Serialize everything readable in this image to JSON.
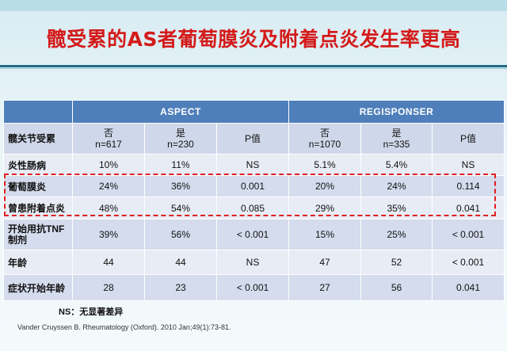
{
  "title": "髋受累的AS者葡萄膜炎及附着点炎发生率更高",
  "table": {
    "groups": [
      "ASPECT",
      "REGISPONSER"
    ],
    "subheader": {
      "label": "髋关节受累",
      "cols": [
        {
          "top": "否",
          "bottom": "n=617"
        },
        {
          "top": "是",
          "bottom": "n=230"
        },
        {
          "top": "P值",
          "bottom": ""
        },
        {
          "top": "否",
          "bottom": "n=1070"
        },
        {
          "top": "是",
          "bottom": "n=335"
        },
        {
          "top": "P值",
          "bottom": ""
        }
      ]
    },
    "rows": [
      {
        "label": "炎性肠病",
        "cells": [
          "10%",
          "11%",
          "NS",
          "5.1%",
          "5.4%",
          "NS"
        ]
      },
      {
        "label": "葡萄膜炎",
        "cells": [
          "24%",
          "36%",
          "0.001",
          "20%",
          "24%",
          "0.114"
        ]
      },
      {
        "label": "曾患附着点炎",
        "cells": [
          "48%",
          "54%",
          "0.085",
          "29%",
          "35%",
          "0.041"
        ]
      },
      {
        "label": "开始用抗TNF制剂",
        "cells": [
          "39%",
          "56%",
          "< 0.001",
          "15%",
          "25%",
          "< 0.001"
        ]
      },
      {
        "label": "年龄",
        "cells": [
          "44",
          "44",
          "NS",
          "47",
          "52",
          "< 0.001"
        ]
      },
      {
        "label": "症状开始年龄",
        "cells": [
          "28",
          "23",
          "< 0.001",
          "27",
          "56",
          "0.041"
        ]
      }
    ]
  },
  "note": "NS：无显著差异",
  "reference": "Vander Cruyssen B. Rheumatology (Oxford). 2010 Jan;49(1):73-81."
}
